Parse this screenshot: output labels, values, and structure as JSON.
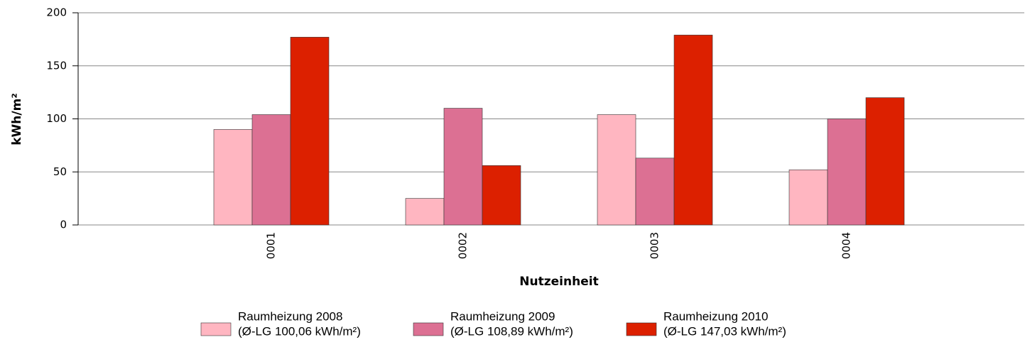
{
  "chart_data": {
    "type": "bar",
    "x_label": "Nutzeinheit",
    "y_label": "kWh/m²",
    "categories": [
      "0001",
      "0002",
      "0003",
      "0004"
    ],
    "series": [
      {
        "name": "Raumheizung 2008",
        "legend_note": "(Ø-LG 100,06 kWh/m²)",
        "color": "#ffb6c1",
        "values": [
          90,
          25,
          104,
          52
        ]
      },
      {
        "name": "Raumheizung 2009",
        "legend_note": "(Ø-LG 108,89 kWh/m²)",
        "color": "#dc7093",
        "values": [
          104,
          110,
          63,
          100
        ]
      },
      {
        "name": "Raumheizung 2010",
        "legend_note": "(Ø-LG 147,03 kWh/m²)",
        "color": "#dc2000",
        "values": [
          177,
          56,
          179,
          120
        ]
      }
    ],
    "ylim": [
      0,
      200
    ],
    "yticks": [
      0,
      50,
      100,
      150,
      200
    ],
    "grid": true
  }
}
